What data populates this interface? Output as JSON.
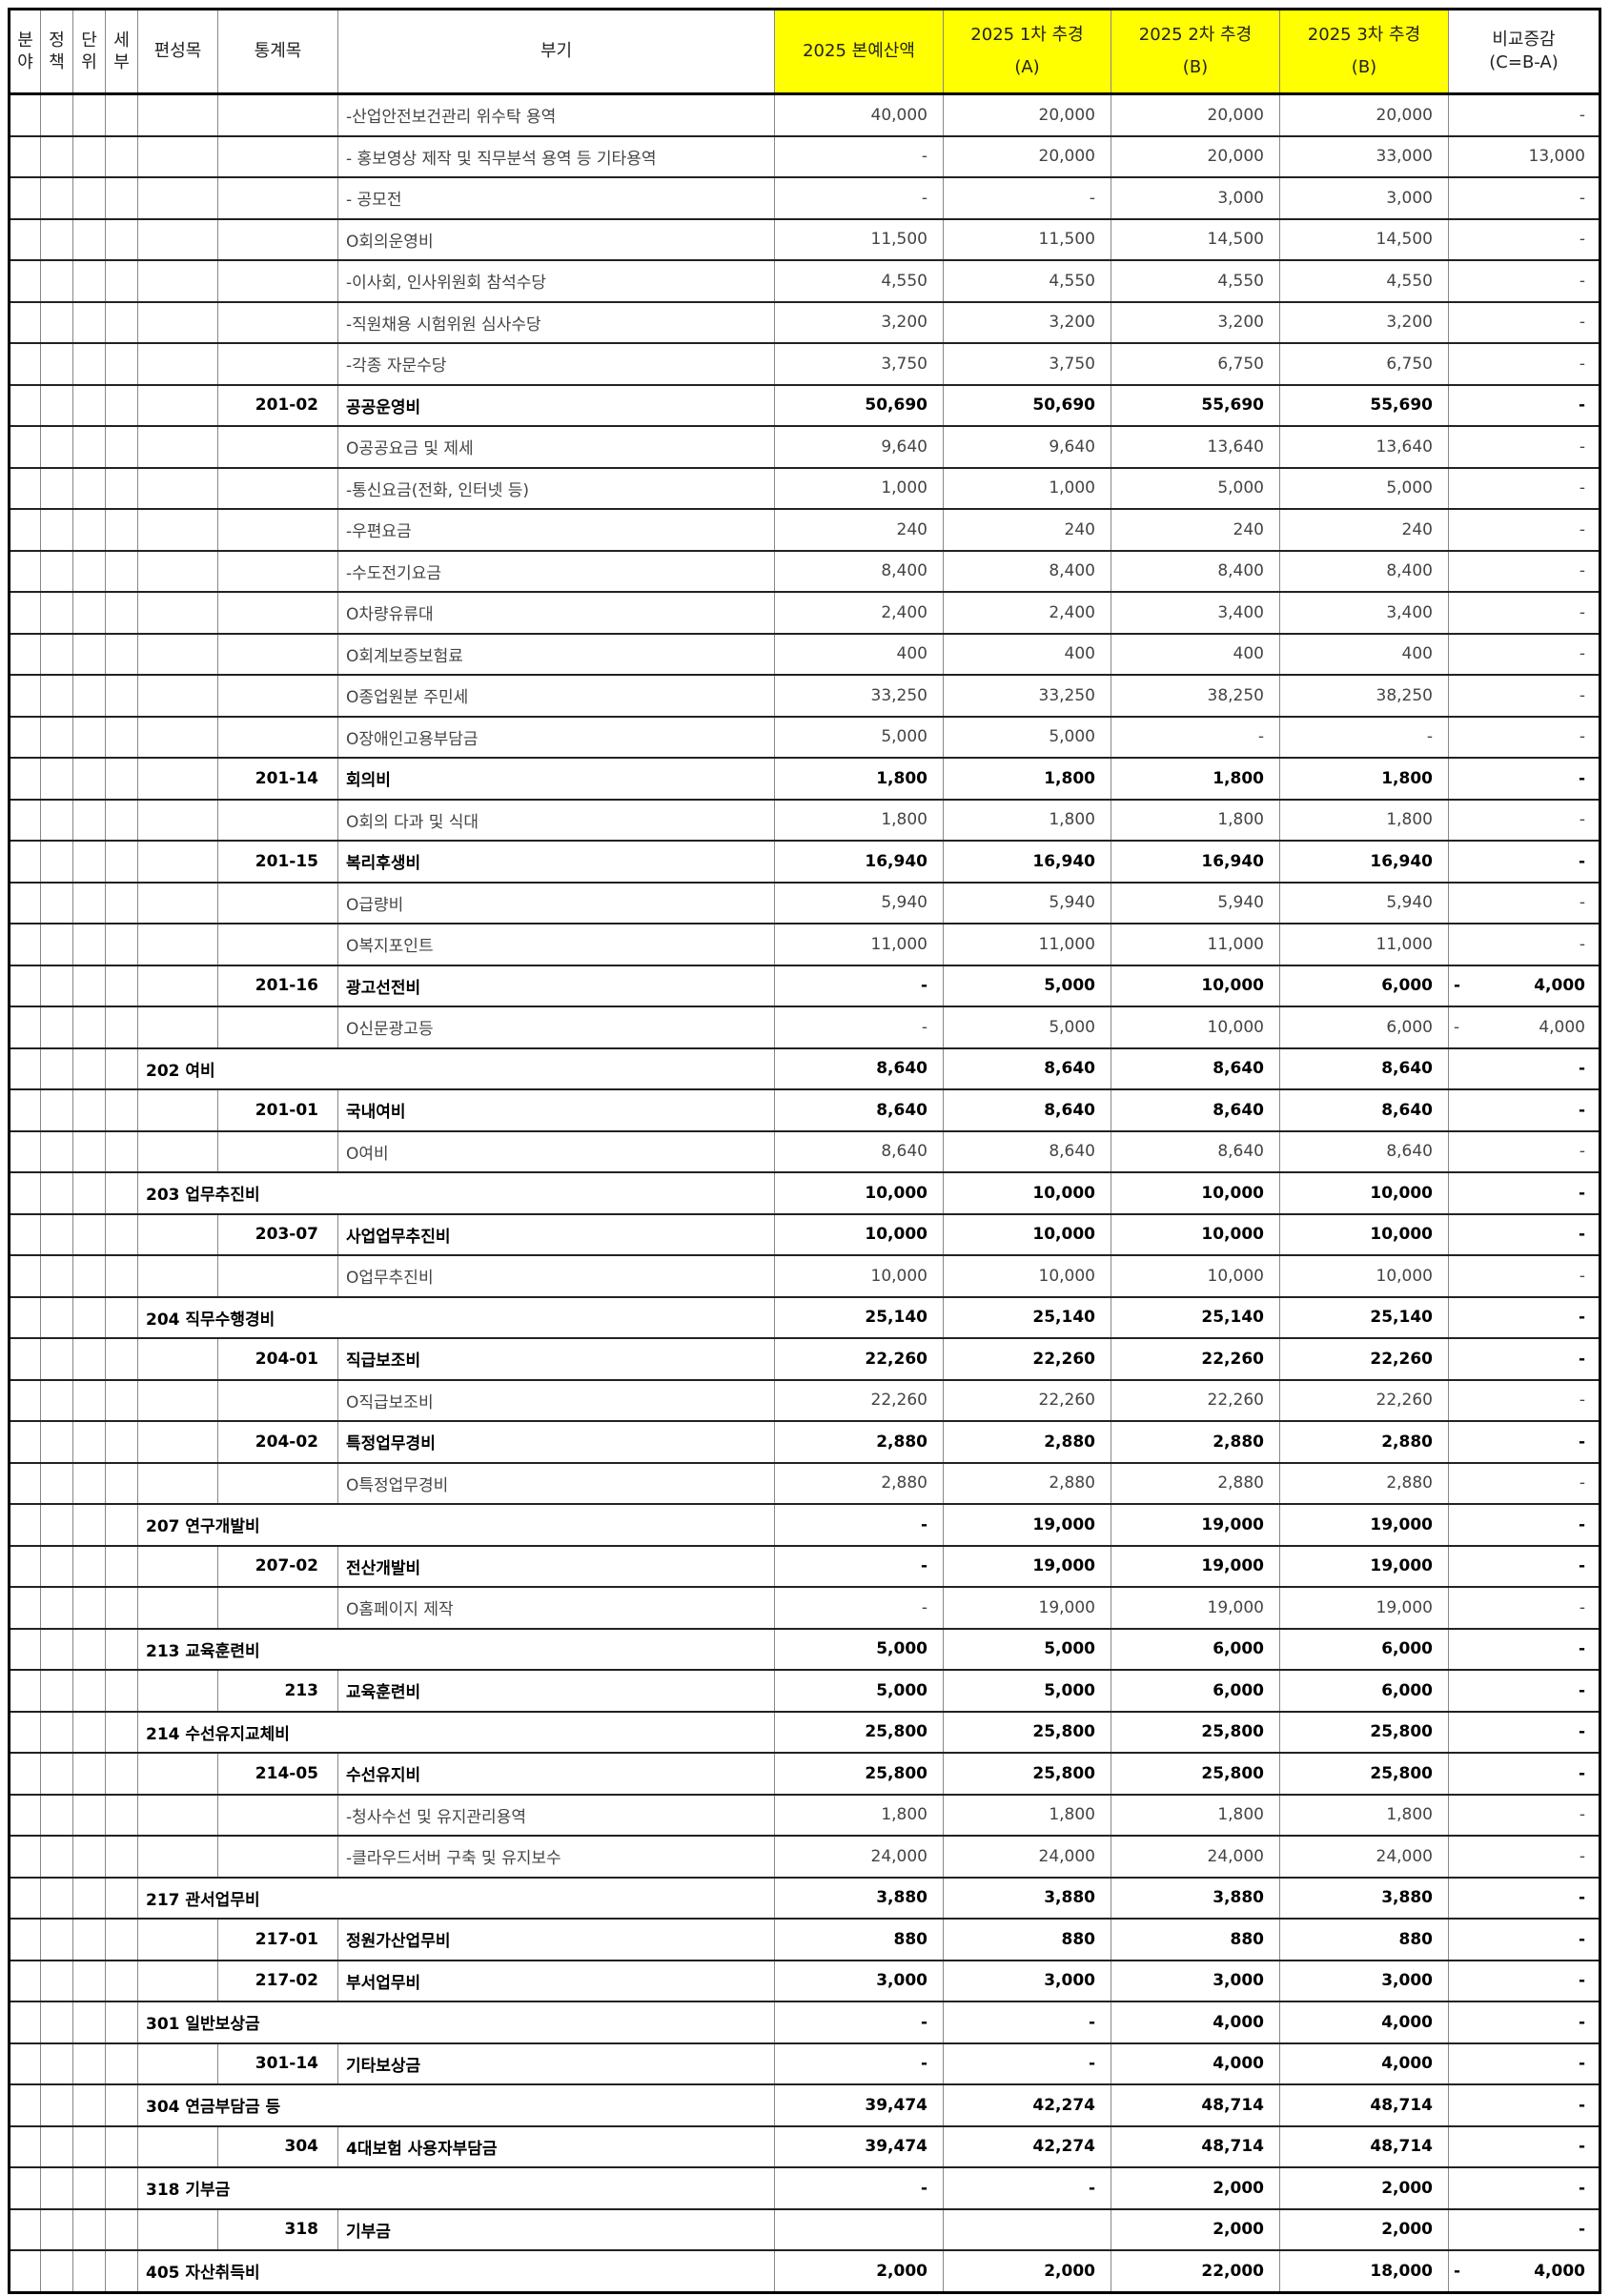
{
  "header": {
    "cols": [
      "분\n야",
      "정\n책",
      "단\n위",
      "세\n부",
      "편성목",
      "통계목",
      "부기"
    ],
    "budget": [
      "2025 본예산액"
    ],
    "rev1": [
      "2025 1차 추경",
      "(A)"
    ],
    "rev2": [
      "2025 2차 추경",
      "(B)"
    ],
    "rev3": [
      "2025 3차 추경",
      "(B)"
    ],
    "diff": [
      "비교증감",
      "(C=B-A)"
    ]
  },
  "colors": {
    "highlight": "#ffff00",
    "negative": "#dd1111"
  },
  "rows": [
    {
      "t": "d",
      "note": "-산업안전보건관리 위수탁 용역",
      "v": [
        "40,000",
        "20,000",
        "20,000",
        "20,000"
      ],
      "diff": "-"
    },
    {
      "t": "d",
      "note": "- 홍보영상 제작 및 직무분석 용역 등 기타용역",
      "v": [
        "-",
        "20,000",
        "20,000",
        "33,000"
      ],
      "diff": "13,000"
    },
    {
      "t": "d",
      "note": "- 공모전",
      "v": [
        "-",
        "-",
        "3,000",
        "3,000"
      ],
      "diff": "-"
    },
    {
      "t": "d",
      "note": "O회의운영비",
      "v": [
        "11,500",
        "11,500",
        "14,500",
        "14,500"
      ],
      "diff": "-"
    },
    {
      "t": "d",
      "note": "-이사회, 인사위원회  참석수당",
      "v": [
        "4,550",
        "4,550",
        "4,550",
        "4,550"
      ],
      "diff": "-"
    },
    {
      "t": "d",
      "note": "-직원채용 시험위원 심사수당",
      "v": [
        "3,200",
        "3,200",
        "3,200",
        "3,200"
      ],
      "diff": "-"
    },
    {
      "t": "d",
      "note": "-각종 자문수당",
      "v": [
        "3,750",
        "3,750",
        "6,750",
        "6,750"
      ],
      "diff": "-"
    },
    {
      "t": "s",
      "code": "201-02",
      "note": "공공운영비",
      "v": [
        "50,690",
        "50,690",
        "55,690",
        "55,690"
      ],
      "diff": "-"
    },
    {
      "t": "d",
      "note": "O공공요금 및 제세",
      "v": [
        "9,640",
        "9,640",
        "13,640",
        "13,640"
      ],
      "diff": "-"
    },
    {
      "t": "d",
      "note": "-통신요금(전화, 인터넷 등)",
      "v": [
        "1,000",
        "1,000",
        "5,000",
        "5,000"
      ],
      "diff": "-"
    },
    {
      "t": "d",
      "note": "-우편요금",
      "v": [
        "240",
        "240",
        "240",
        "240"
      ],
      "diff": "-"
    },
    {
      "t": "d",
      "note": "-수도전기요금",
      "v": [
        "8,400",
        "8,400",
        "8,400",
        "8,400"
      ],
      "diff": "-"
    },
    {
      "t": "d",
      "note": "O차량유류대",
      "v": [
        "2,400",
        "2,400",
        "3,400",
        "3,400"
      ],
      "diff": "-"
    },
    {
      "t": "d",
      "note": "O회계보증보험료",
      "v": [
        "400",
        "400",
        "400",
        "400"
      ],
      "diff": "-"
    },
    {
      "t": "d",
      "note": "O종업원분 주민세",
      "v": [
        "33,250",
        "33,250",
        "38,250",
        "38,250"
      ],
      "diff": "-"
    },
    {
      "t": "d",
      "note": "O장애인고용부담금",
      "v": [
        "5,000",
        "5,000",
        "-",
        "-"
      ],
      "diff": "-"
    },
    {
      "t": "s",
      "code": "201-14",
      "note": "회의비",
      "v": [
        "1,800",
        "1,800",
        "1,800",
        "1,800"
      ],
      "diff": "-"
    },
    {
      "t": "d",
      "note": "O회의 다과 및 식대",
      "v": [
        "1,800",
        "1,800",
        "1,800",
        "1,800"
      ],
      "diff": "-"
    },
    {
      "t": "s",
      "code": "201-15",
      "note": "복리후생비",
      "v": [
        "16,940",
        "16,940",
        "16,940",
        "16,940"
      ],
      "diff": "-"
    },
    {
      "t": "d",
      "note": "O급량비",
      "v": [
        "5,940",
        "5,940",
        "5,940",
        "5,940"
      ],
      "diff": "-"
    },
    {
      "t": "d",
      "note": "O복지포인트",
      "v": [
        "11,000",
        "11,000",
        "11,000",
        "11,000"
      ],
      "diff": "-"
    },
    {
      "t": "s",
      "code": "201-16",
      "note": "광고선전비",
      "v": [
        "-",
        "5,000",
        "10,000",
        "6,000"
      ],
      "diff": "- 4,000"
    },
    {
      "t": "d",
      "note": "O신문광고등",
      "v": [
        "-",
        "5,000",
        "10,000",
        "6,000"
      ],
      "diff": "- 4,000"
    },
    {
      "t": "t",
      "item": "202 여비",
      "v": [
        "8,640",
        "8,640",
        "8,640",
        "8,640"
      ],
      "diff": "-"
    },
    {
      "t": "s",
      "code": "201-01",
      "note": "국내여비",
      "v": [
        "8,640",
        "8,640",
        "8,640",
        "8,640"
      ],
      "diff": "-"
    },
    {
      "t": "d",
      "note": "O여비",
      "v": [
        "8,640",
        "8,640",
        "8,640",
        "8,640"
      ],
      "diff": "-"
    },
    {
      "t": "t",
      "item": "203 업무추진비",
      "v": [
        "10,000",
        "10,000",
        "10,000",
        "10,000"
      ],
      "diff": "-"
    },
    {
      "t": "s",
      "code": "203-07",
      "note": "사업업무추진비",
      "v": [
        "10,000",
        "10,000",
        "10,000",
        "10,000"
      ],
      "diff": "-"
    },
    {
      "t": "d",
      "note": "O업무추진비",
      "v": [
        "10,000",
        "10,000",
        "10,000",
        "10,000"
      ],
      "diff": "-"
    },
    {
      "t": "t",
      "item": "204 직무수행경비",
      "v": [
        "25,140",
        "25,140",
        "25,140",
        "25,140"
      ],
      "diff": "-"
    },
    {
      "t": "s",
      "code": "204-01",
      "note": "직급보조비",
      "v": [
        "22,260",
        "22,260",
        "22,260",
        "22,260"
      ],
      "diff": "-"
    },
    {
      "t": "d",
      "note": "O직급보조비",
      "v": [
        "22,260",
        "22,260",
        "22,260",
        "22,260"
      ],
      "diff": "-"
    },
    {
      "t": "s",
      "code": "204-02",
      "note": "특정업무경비",
      "v": [
        "2,880",
        "2,880",
        "2,880",
        "2,880"
      ],
      "diff": "-"
    },
    {
      "t": "d",
      "note": "O특정업무경비",
      "v": [
        "2,880",
        "2,880",
        "2,880",
        "2,880"
      ],
      "diff": "-"
    },
    {
      "t": "t",
      "item": "207 연구개발비",
      "v": [
        "-",
        "19,000",
        "19,000",
        "19,000"
      ],
      "diff": "-"
    },
    {
      "t": "s",
      "code": "207-02",
      "note": "전산개발비",
      "v": [
        "-",
        "19,000",
        "19,000",
        "19,000"
      ],
      "diff": "-"
    },
    {
      "t": "d",
      "note": "O홈페이지 제작",
      "v": [
        "-",
        "19,000",
        "19,000",
        "19,000"
      ],
      "diff": "-"
    },
    {
      "t": "t",
      "item": "213 교육훈련비",
      "v": [
        "5,000",
        "5,000",
        "6,000",
        "6,000"
      ],
      "diff": "-"
    },
    {
      "t": "s",
      "code": "213",
      "note": "교육훈련비",
      "v": [
        "5,000",
        "5,000",
        "6,000",
        "6,000"
      ],
      "diff": "-"
    },
    {
      "t": "t",
      "item": "214 수선유지교체비",
      "v": [
        "25,800",
        "25,800",
        "25,800",
        "25,800"
      ],
      "diff": "-"
    },
    {
      "t": "s",
      "code": "214-05",
      "note": "수선유지비",
      "v": [
        "25,800",
        "25,800",
        "25,800",
        "25,800"
      ],
      "diff": "-"
    },
    {
      "t": "d",
      "note": "-청사수선 및 유지관리용역",
      "v": [
        "1,800",
        "1,800",
        "1,800",
        "1,800"
      ],
      "diff": "-"
    },
    {
      "t": "d",
      "note": "-클라우드서버 구축 및 유지보수",
      "v": [
        "24,000",
        "24,000",
        "24,000",
        "24,000"
      ],
      "diff": "-"
    },
    {
      "t": "t",
      "item": "217 관서업무비",
      "v": [
        "3,880",
        "3,880",
        "3,880",
        "3,880"
      ],
      "diff": "-"
    },
    {
      "t": "s",
      "code": "217-01",
      "note": "정원가산업무비",
      "v": [
        "880",
        "880",
        "880",
        "880"
      ],
      "diff": "-"
    },
    {
      "t": "s",
      "code": "217-02",
      "note": "부서업무비",
      "v": [
        "3,000",
        "3,000",
        "3,000",
        "3,000"
      ],
      "diff": "-"
    },
    {
      "t": "t",
      "item": "301 일반보상금",
      "v": [
        "-",
        "-",
        "4,000",
        "4,000"
      ],
      "diff": "-"
    },
    {
      "t": "s",
      "code": "301-14",
      "note": "기타보상금",
      "v": [
        "-",
        "-",
        "4,000",
        "4,000"
      ],
      "diff": "-"
    },
    {
      "t": "t",
      "item": "304 연금부담금 등",
      "v": [
        "39,474",
        "42,274",
        "48,714",
        "48,714"
      ],
      "diff": "-"
    },
    {
      "t": "s",
      "code": "304",
      "note": "4대보험 사용자부담금",
      "v": [
        "39,474",
        "42,274",
        "48,714",
        "48,714"
      ],
      "diff": "-"
    },
    {
      "t": "t",
      "item": "318 기부금",
      "v": [
        "-",
        "-",
        "2,000",
        "2,000"
      ],
      "diff": "-"
    },
    {
      "t": "s",
      "code": "318",
      "note": "기부금",
      "v": [
        "",
        "",
        "2,000",
        "2,000"
      ],
      "diff": "-"
    },
    {
      "t": "t",
      "item": "405 자산취득비",
      "v": [
        "2,000",
        "2,000",
        "22,000",
        "18,000"
      ],
      "diff": "- 4,000"
    }
  ]
}
